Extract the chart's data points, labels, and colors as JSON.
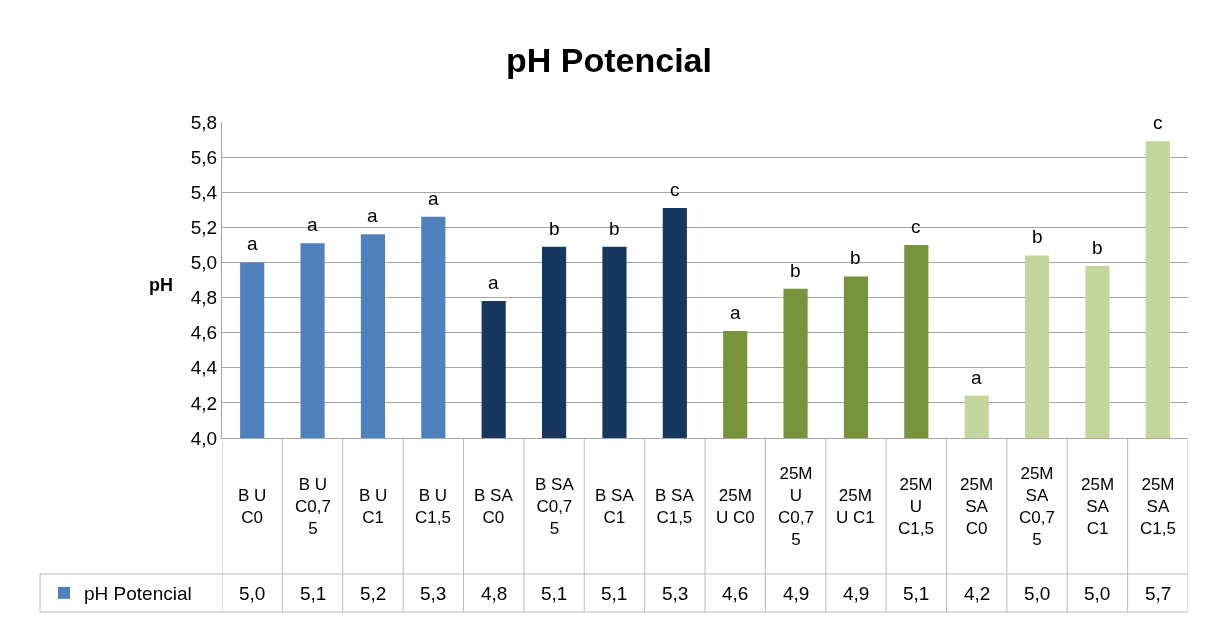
{
  "chart_data": {
    "type": "bar",
    "title": "pH Potencial",
    "ylabel": "pH",
    "categories": [
      "B U C0",
      "B U C0,75",
      "B U C1",
      "B U C1,5",
      "B SA C0",
      "B SA C0,75",
      "B SA C1",
      "B SA C1,5",
      "25M U C0",
      "25M U C0,75",
      "25M U C1",
      "25M U C1,5",
      "25M SA C0",
      "25M SA C0,75",
      "25M SA C1",
      "25M SA C1,5"
    ],
    "series": [
      {
        "name": "pH Potencial",
        "values": [
          5.0,
          5.11,
          5.16,
          5.26,
          4.78,
          5.09,
          5.09,
          5.31,
          4.61,
          4.85,
          4.92,
          5.1,
          4.24,
          5.04,
          4.98,
          5.69
        ],
        "colors": [
          "#4f81bd",
          "#4f81bd",
          "#4f81bd",
          "#4f81bd",
          "#17375e",
          "#17375e",
          "#17375e",
          "#17375e",
          "#77933c",
          "#77933c",
          "#77933c",
          "#77933c",
          "#c3d69b",
          "#c3d69b",
          "#c3d69b",
          "#c3d69b"
        ],
        "value_labels": [
          "5,0",
          "5,1",
          "5,2",
          "5,3",
          "4,8",
          "5,1",
          "5,1",
          "5,3",
          "4,6",
          "4,9",
          "4,9",
          "5,1",
          "4,2",
          "5,0",
          "5,0",
          "5,7"
        ]
      }
    ],
    "ylim": [
      4.0,
      5.8
    ],
    "yticks": [
      {
        "value": 4.0,
        "label": "4,0"
      },
      {
        "value": 4.2,
        "label": "4,2"
      },
      {
        "value": 4.4,
        "label": "4,4"
      },
      {
        "value": 4.6,
        "label": "4,6"
      },
      {
        "value": 4.8,
        "label": "4,8"
      },
      {
        "value": 5.0,
        "label": "5,0"
      },
      {
        "value": 5.2,
        "label": "5,2"
      },
      {
        "value": 5.4,
        "label": "5,4"
      },
      {
        "value": 5.6,
        "label": "5,6"
      },
      {
        "value": 5.8,
        "label": "5,8"
      }
    ],
    "grid": "y",
    "legend": "bottom left",
    "annotations": [
      {
        "text": "a",
        "x": "B U C0",
        "y": 5.0
      },
      {
        "text": "a",
        "x": "B U C0,75",
        "y": 5.11
      },
      {
        "text": "a",
        "x": "B U C1",
        "y": 5.16
      },
      {
        "text": "a",
        "x": "B U C1,5",
        "y": 5.26
      },
      {
        "text": "a",
        "x": "B SA C0",
        "y": 4.78
      },
      {
        "text": "b",
        "x": "B SA C0,75",
        "y": 5.09
      },
      {
        "text": "b",
        "x": "B SA C1",
        "y": 5.09
      },
      {
        "text": "c",
        "x": "B SA C1,5",
        "y": 5.31
      },
      {
        "text": "a",
        "x": "25M U C0",
        "y": 4.61
      },
      {
        "text": "b",
        "x": "25M U C0,75",
        "y": 4.85
      },
      {
        "text": "b",
        "x": "25M U C1",
        "y": 4.92
      },
      {
        "text": "c",
        "x": "25M U C1,5",
        "y": 5.1
      },
      {
        "text": "a",
        "x": "25M SA C0",
        "y": 4.24
      },
      {
        "text": "b",
        "x": "25M SA C0,75",
        "y": 5.04
      },
      {
        "text": "b",
        "x": "25M SA C1",
        "y": 4.98
      },
      {
        "text": "c",
        "x": "25M SA C1,5",
        "y": 5.69
      }
    ]
  }
}
